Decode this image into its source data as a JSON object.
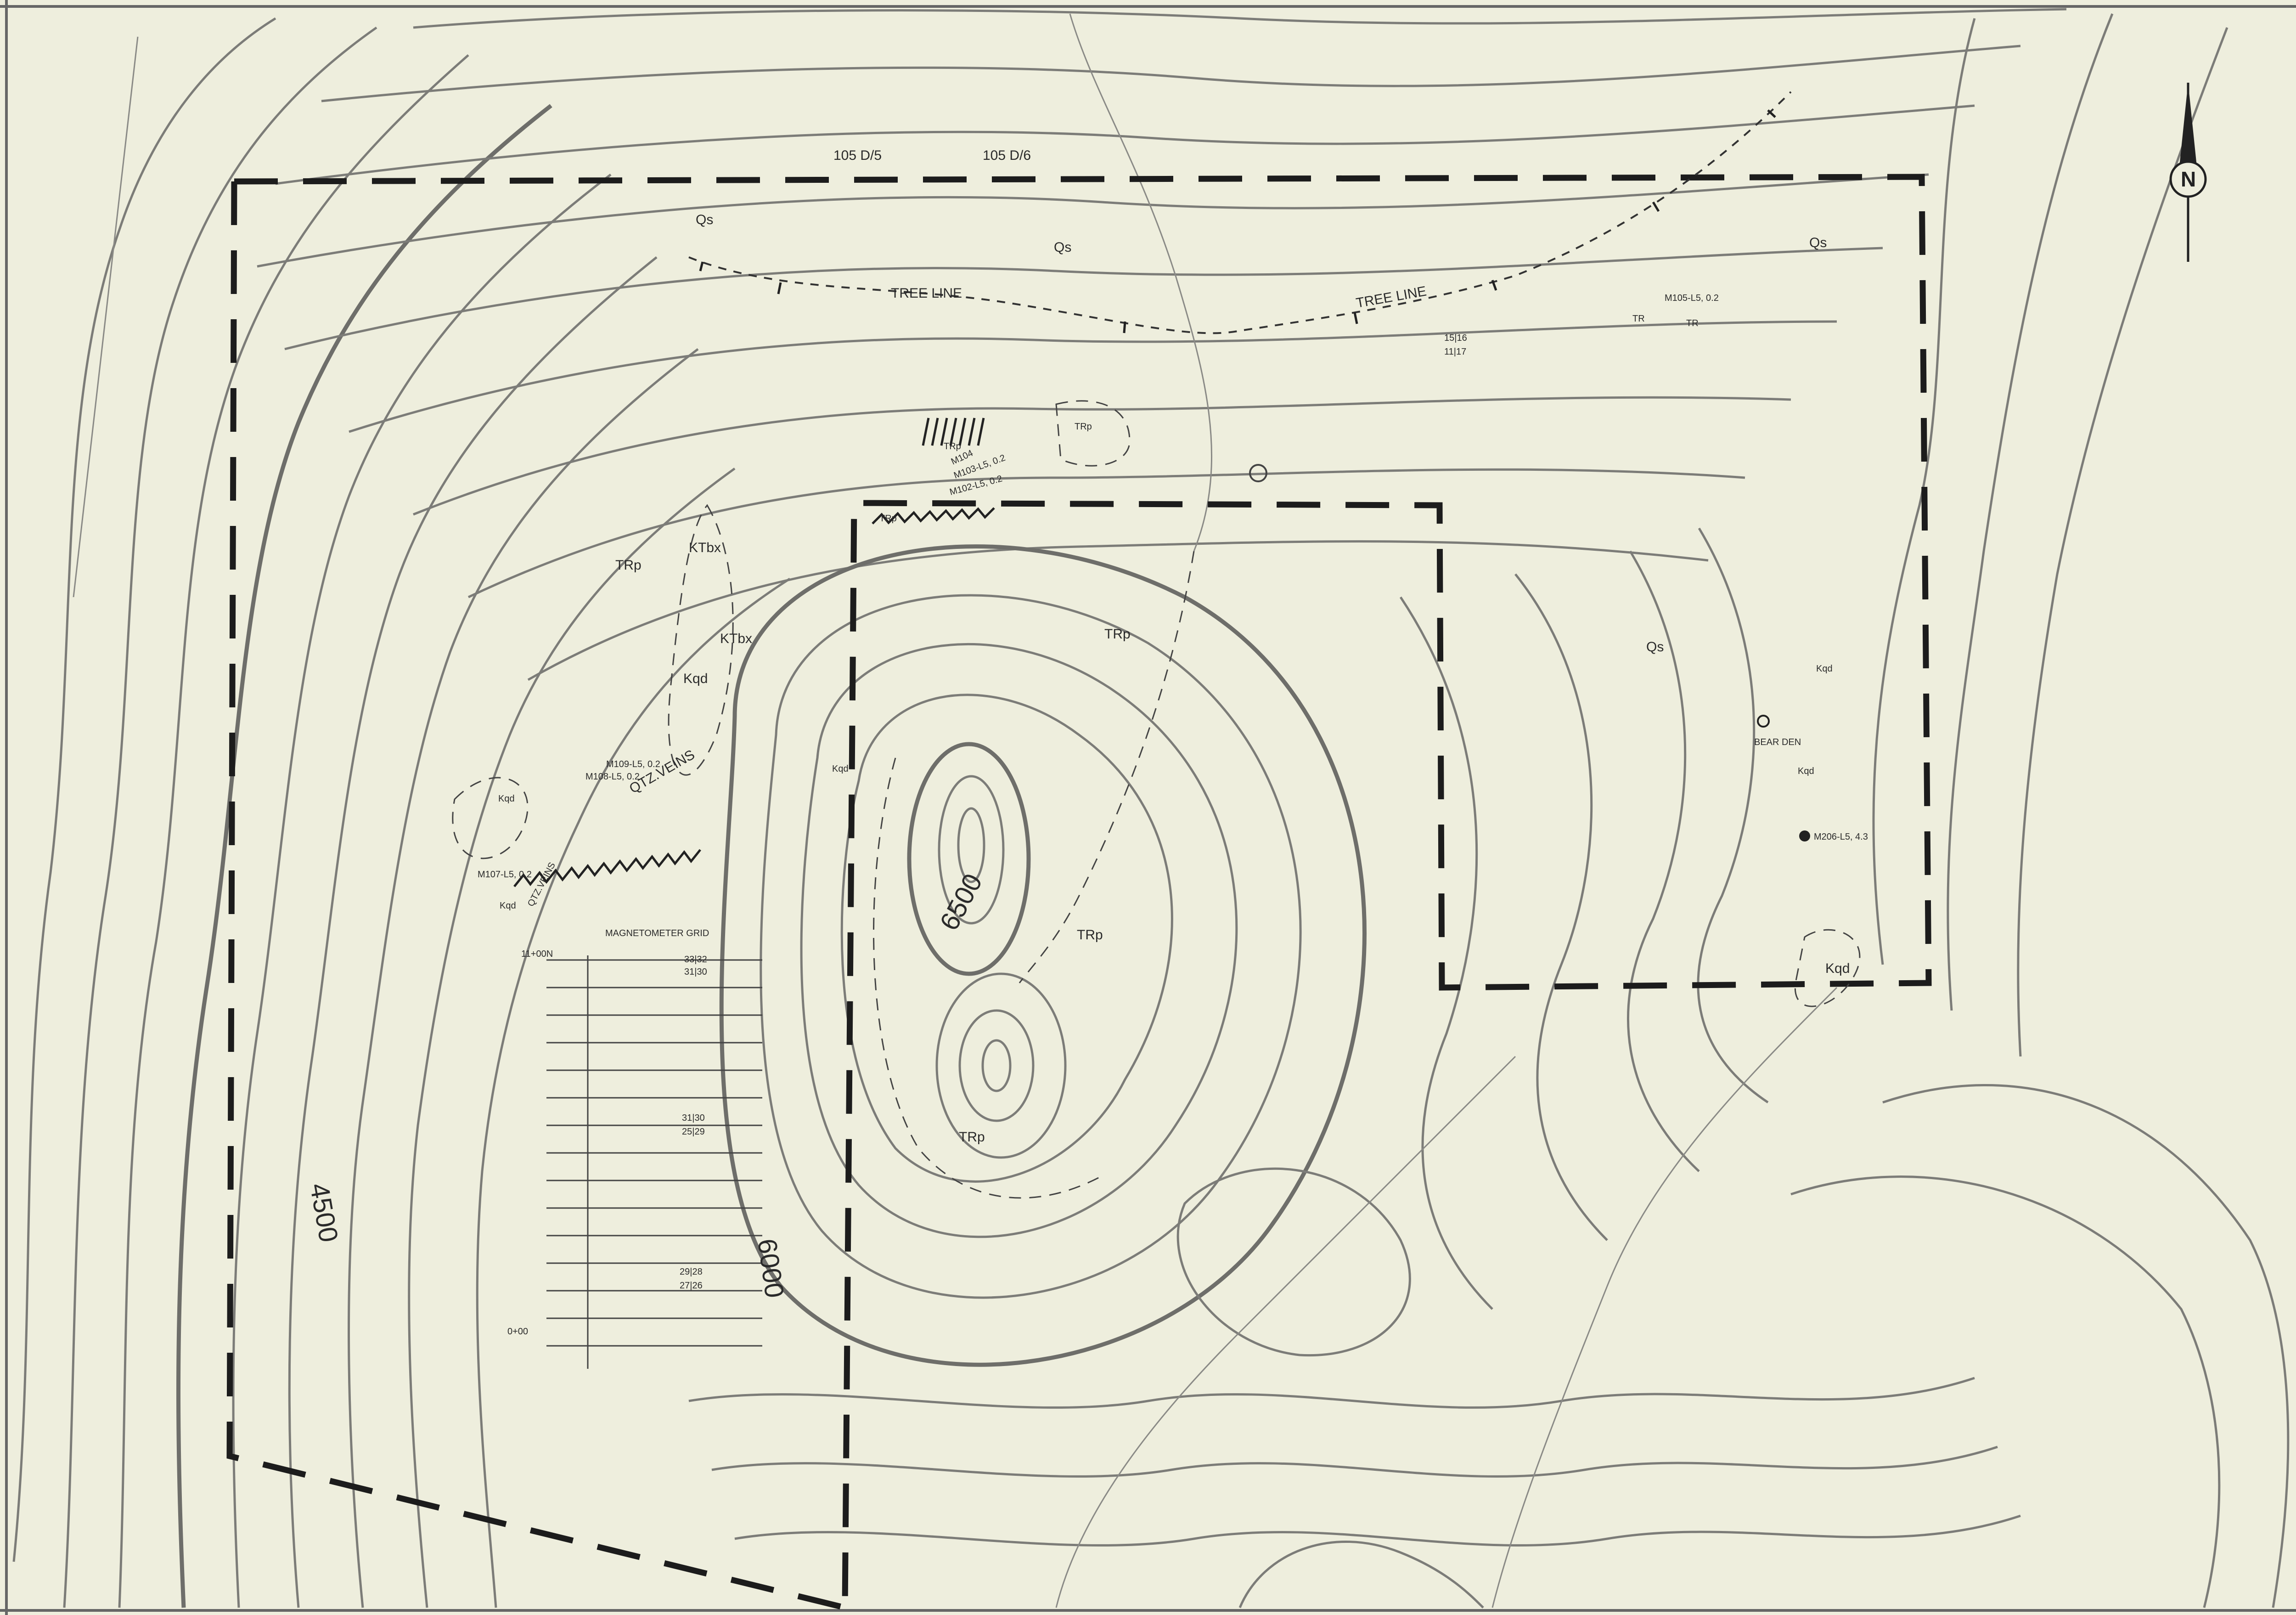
{
  "map": {
    "colors": {
      "paper": "#eeeedd",
      "contour": "#7c7c78",
      "ink": "#1c1c1c"
    },
    "sheets": [
      "105 D/5",
      "105 D/6"
    ],
    "tree_line": "TREE LINE",
    "units": {
      "qs": "Qs",
      "trp": "TRp",
      "kqd": "Kqd",
      "ktbx": "KTbx",
      "tr": "TR"
    },
    "contour_labels": [
      "6500",
      "6000",
      "4500"
    ],
    "features": {
      "qtz_veins": "QTZ.VEINS",
      "bear_den": "BEAR DEN",
      "mag_grid": "MAGNETOMETER GRID"
    },
    "grid_stations": [
      "11+00N",
      "0+00"
    ],
    "samples": [
      "M105-L5, 0.2",
      "M104",
      "M103-L5, 0.2",
      "M102-L5, 0.2",
      "M109-L5, 0.2",
      "M108-L5, 0.2",
      "M107-L5, 0.2",
      "M206-L5, 4.3"
    ],
    "readings": [
      "33|32",
      "31|30",
      "31|30",
      "25|29",
      "29|28",
      "27|26",
      "15|16",
      "11|17"
    ],
    "north_arrow": "N"
  }
}
